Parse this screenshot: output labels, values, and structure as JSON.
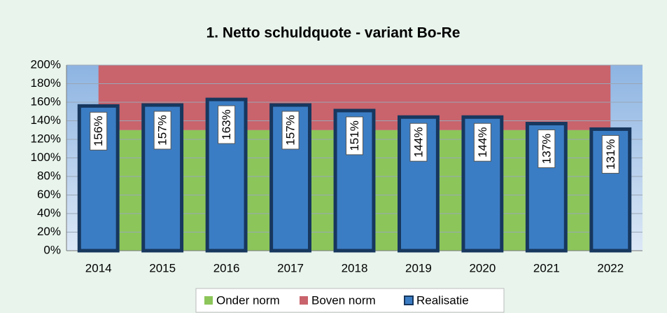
{
  "chart_data": {
    "type": "bar",
    "title": "1. Netto schuldquote  - variant Bo-Re",
    "categories": [
      "2014",
      "2015",
      "2016",
      "2017",
      "2018",
      "2019",
      "2020",
      "2021",
      "2022"
    ],
    "series": [
      {
        "name": "Onder norm",
        "type": "area",
        "color": "#8cc65a",
        "values": [
          130,
          130,
          130,
          130,
          130,
          130,
          130,
          130,
          130
        ]
      },
      {
        "name": "Boven norm",
        "type": "area",
        "color": "#c9636c",
        "values": [
          70,
          70,
          70,
          70,
          70,
          70,
          70,
          70,
          70
        ]
      },
      {
        "name": "Realisatie",
        "type": "bar",
        "color": "#3b7dc4",
        "values": [
          156,
          157,
          163,
          157,
          151,
          144,
          144,
          137,
          131
        ],
        "value_labels": [
          "156%",
          "157%",
          "163%",
          "157%",
          "151%",
          "144%",
          "144%",
          "137%",
          "131%"
        ]
      }
    ],
    "ylim": [
      0,
      200
    ],
    "yticks": [
      {
        "value": 0,
        "label": "0%"
      },
      {
        "value": 20,
        "label": "20%"
      },
      {
        "value": 40,
        "label": "40%"
      },
      {
        "value": 60,
        "label": "60%"
      },
      {
        "value": 80,
        "label": "80%"
      },
      {
        "value": 100,
        "label": "100%"
      },
      {
        "value": 120,
        "label": "120%"
      },
      {
        "value": 140,
        "label": "140%"
      },
      {
        "value": 160,
        "label": "160%"
      },
      {
        "value": 180,
        "label": "180%"
      },
      {
        "value": 200,
        "label": "200%"
      }
    ],
    "grid": true,
    "legend": "bottom"
  }
}
